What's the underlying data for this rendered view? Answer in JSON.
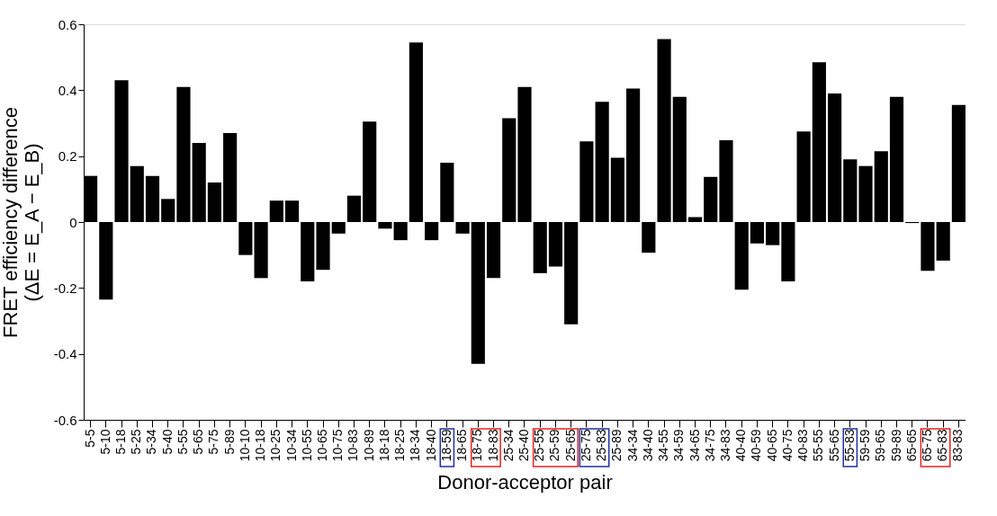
{
  "chart_data": {
    "type": "bar",
    "xlabel": "Donor-acceptor pair",
    "ylabel": "FRET efficiency difference\n(ΔE = E_A − E_B)",
    "categories": [
      "5-5",
      "5-10",
      "5-18",
      "5-25",
      "5-34",
      "5-40",
      "5-55",
      "5-65",
      "5-75",
      "5-89",
      "10-10",
      "10-18",
      "10-25",
      "10-34",
      "10-55",
      "10-65",
      "10-75",
      "10-83",
      "10-89",
      "18-18",
      "18-25",
      "18-34",
      "18-40",
      "18-59",
      "18-65",
      "18-75",
      "18-83",
      "25-34",
      "25-40",
      "25-55",
      "25-59",
      "25-65",
      "25-75",
      "25-83",
      "25-89",
      "34-34",
      "34-40",
      "34-55",
      "34-59",
      "34-65",
      "34-75",
      "34-83",
      "40-40",
      "40-59",
      "40-65",
      "40-75",
      "40-83",
      "55-55",
      "55-65",
      "55-83",
      "59-59",
      "59-65",
      "59-89",
      "65-65",
      "65-75",
      "65-83",
      "83-83"
    ],
    "values": [
      0.14,
      -0.235,
      0.43,
      0.17,
      0.14,
      0.07,
      0.41,
      0.24,
      0.12,
      0.27,
      -0.1,
      -0.17,
      0.065,
      0.065,
      -0.18,
      -0.145,
      -0.035,
      0.08,
      0.305,
      -0.02,
      -0.055,
      0.545,
      -0.055,
      0.18,
      -0.035,
      -0.43,
      -0.17,
      0.315,
      0.41,
      -0.155,
      -0.135,
      -0.31,
      0.245,
      0.365,
      0.195,
      0.405,
      -0.093,
      0.555,
      0.38,
      0.015,
      0.137,
      0.248,
      -0.205,
      -0.065,
      -0.07,
      -0.18,
      0.275,
      0.485,
      0.39,
      0.19,
      0.17,
      0.215,
      0.38,
      -0.003,
      -0.148,
      -0.117,
      0.355
    ],
    "color": "#000000",
    "ylim": [
      -0.6,
      0.6
    ],
    "yticks": [
      -0.6,
      -0.4,
      -0.2,
      0,
      0.2,
      0.4,
      0.6
    ],
    "grid": false
  }
}
